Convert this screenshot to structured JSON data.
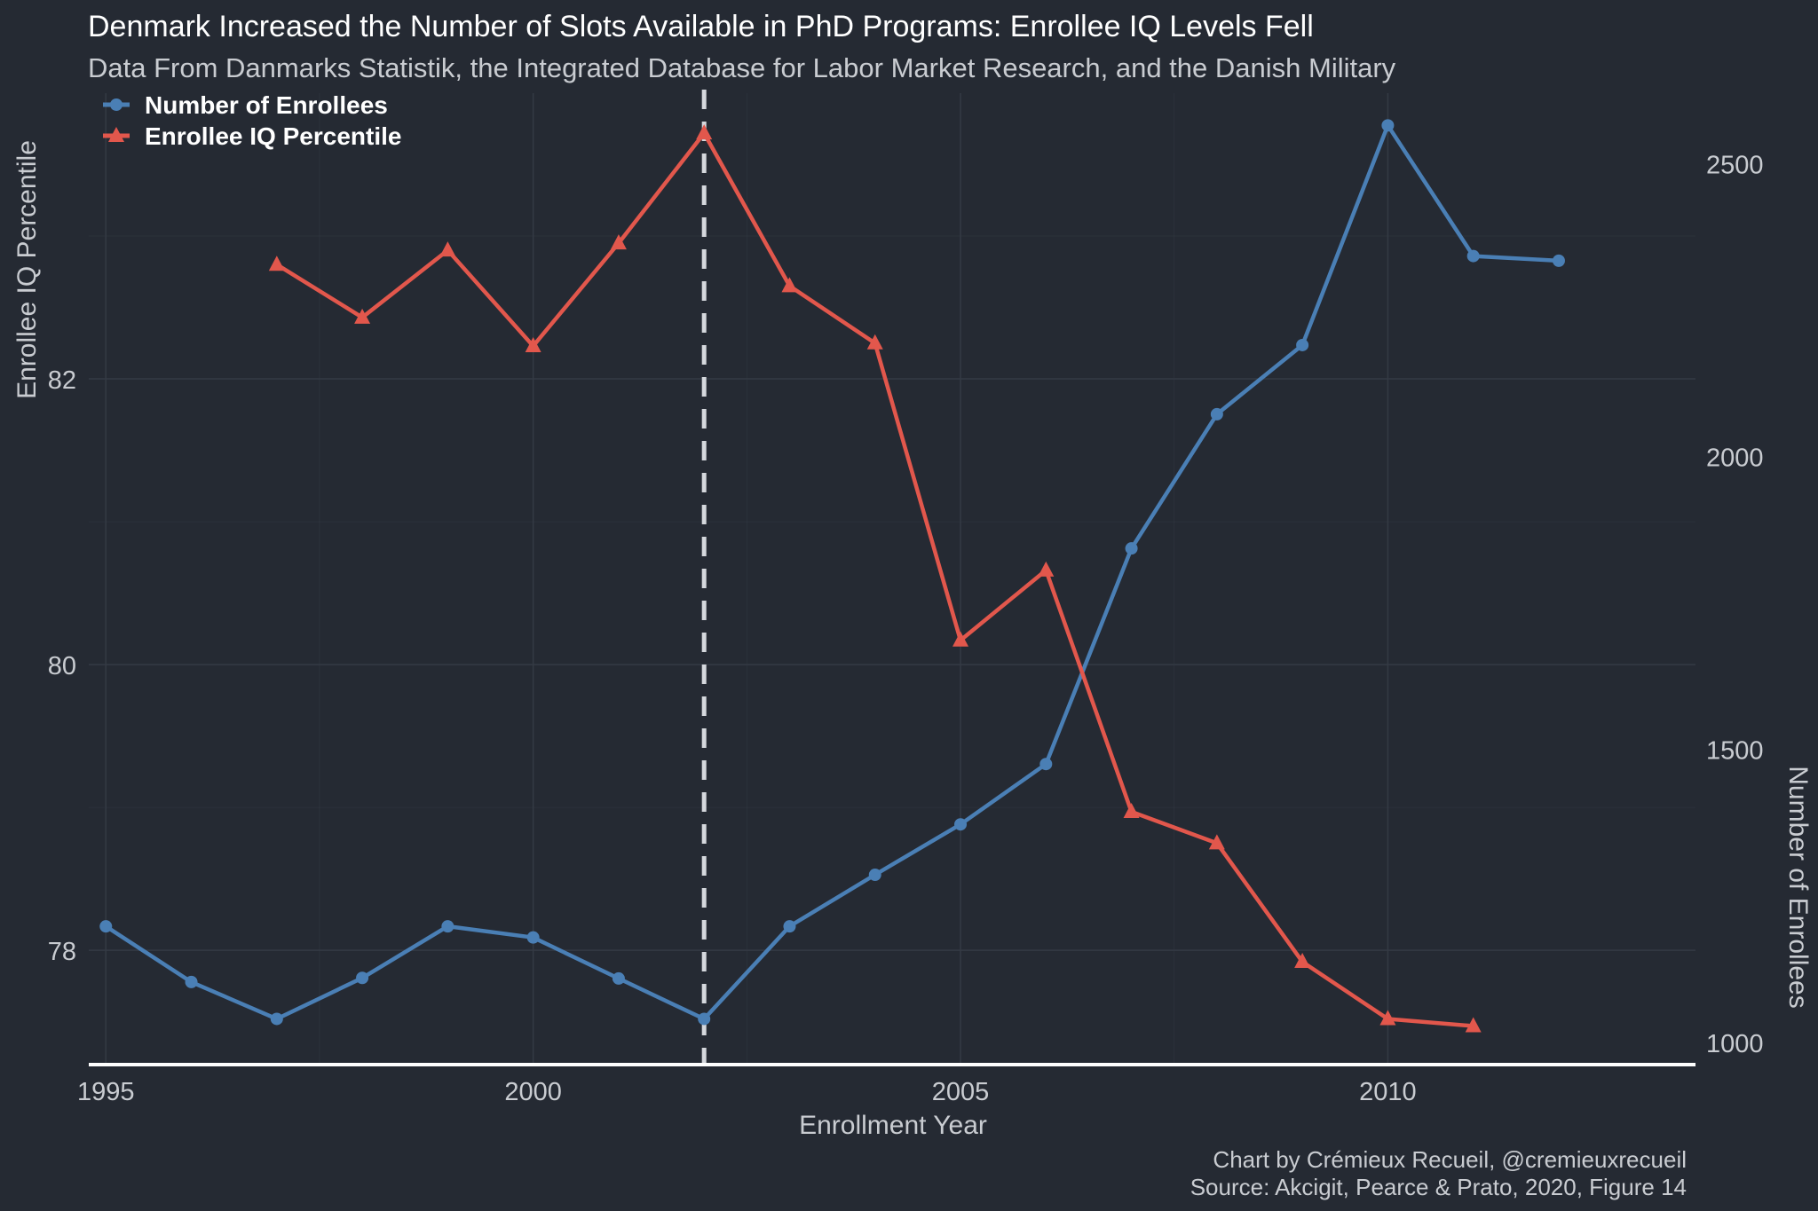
{
  "chart_data": {
    "type": "line",
    "title": "Denmark Increased the Number of Slots Available in PhD Programs: Enrollee IQ Levels Fell",
    "subtitle": "Data From Danmarks Statistik, the Integrated Database for Labor Market Research, and the Danish Military",
    "xlabel": "Enrollment Year",
    "ylabel_left": "Enrollee IQ Percentile",
    "ylabel_right": "Number of Enrollees",
    "xlim": [
      1994.8,
      2013.6
    ],
    "ylim_left": [
      77.2,
      84.0
    ],
    "ylim_right": [
      962,
      2620
    ],
    "x_ticks": [
      1995,
      2000,
      2005,
      2010
    ],
    "y_ticks_left": [
      78,
      80,
      82
    ],
    "y_ticks_right": [
      1000,
      1500,
      2000,
      2500
    ],
    "grid": true,
    "legend_position": "top-left",
    "reference_line": {
      "x": 2002,
      "style": "dashed"
    },
    "series": [
      {
        "name": "Number of Enrollees",
        "axis": "right",
        "color": "#4a7fb5",
        "marker": "circle",
        "x": [
          1995,
          1996,
          1997,
          1998,
          1999,
          2000,
          2001,
          2002,
          2003,
          2004,
          2005,
          2006,
          2007,
          2008,
          2009,
          2010,
          2011,
          2012
        ],
        "values": [
          1198,
          1103,
          1040,
          1110,
          1198,
          1179,
          1109,
          1040,
          1198,
          1286,
          1372,
          1475,
          1843,
          2072,
          2190,
          2565,
          2342,
          2334
        ]
      },
      {
        "name": "Enrollee IQ Percentile",
        "axis": "left",
        "color": "#e2574c",
        "marker": "triangle",
        "x": [
          1997,
          1998,
          1999,
          2000,
          2001,
          2002,
          2003,
          2004,
          2005,
          2006,
          2007,
          2008,
          2009,
          2010,
          2011
        ],
        "values": [
          82.8,
          82.43,
          82.9,
          82.23,
          82.95,
          83.72,
          82.65,
          82.25,
          80.17,
          80.66,
          78.97,
          78.75,
          77.92,
          77.52,
          77.47
        ]
      }
    ]
  },
  "caption": {
    "line1": "Chart by Crémieux Recueil, @cremieuxrecueil",
    "line2": "Source: Akcigit, Pearce & Prato, 2020, Figure 14"
  },
  "colors": {
    "background": "#252a33",
    "grid": "#343a44",
    "axis_line": "#ffffff",
    "ref_line": "#d5d8dd",
    "text": "#c9ccd1",
    "title": "#ffffff"
  }
}
